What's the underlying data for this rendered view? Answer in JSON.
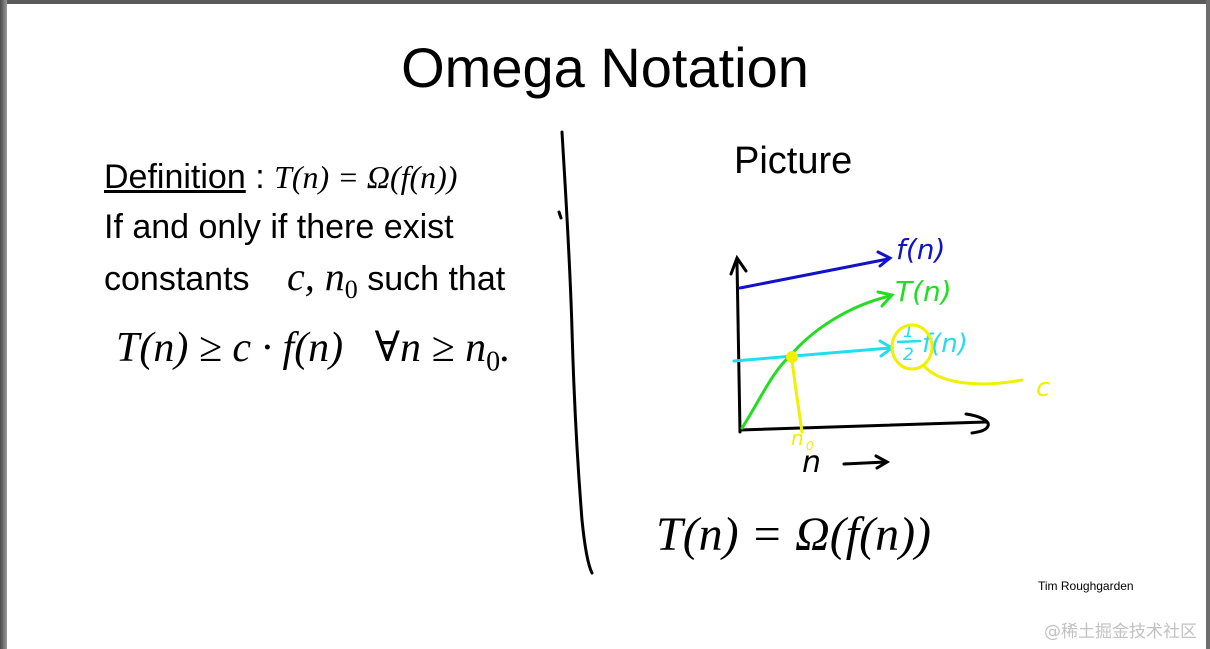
{
  "slide": {
    "title": "Omega Notation",
    "definition_label": "Definition",
    "definition_sep": " : ",
    "definition_math": "T(n) = Ω(f(n))",
    "line1": "If and only if there exist",
    "line2_text": "constants",
    "line2_math": "c, n",
    "line2_sub": "0",
    "line2_tail": "such that",
    "formula": "T(n) ≥ c · f(n)   ∀n ≥ n",
    "formula_sub": "0",
    "picture_label": "Picture",
    "result": "T(n) = Ω(f(n))",
    "credit": "Tim Roughgarden",
    "watermark": "@稀土掘金技术社区"
  },
  "sketch": {
    "labels": {
      "f": "f(n)",
      "t": "T(n)",
      "half_num": "1",
      "half_den": "2",
      "half_f": "f(n)",
      "c": "c",
      "n0": "n",
      "n0_sub": "0",
      "x_axis": "n"
    },
    "colors": {
      "f": "#1212c8",
      "t": "#22dd22",
      "half_f": "#22ddee",
      "c": "#f0f000",
      "axes": "#000000"
    }
  }
}
